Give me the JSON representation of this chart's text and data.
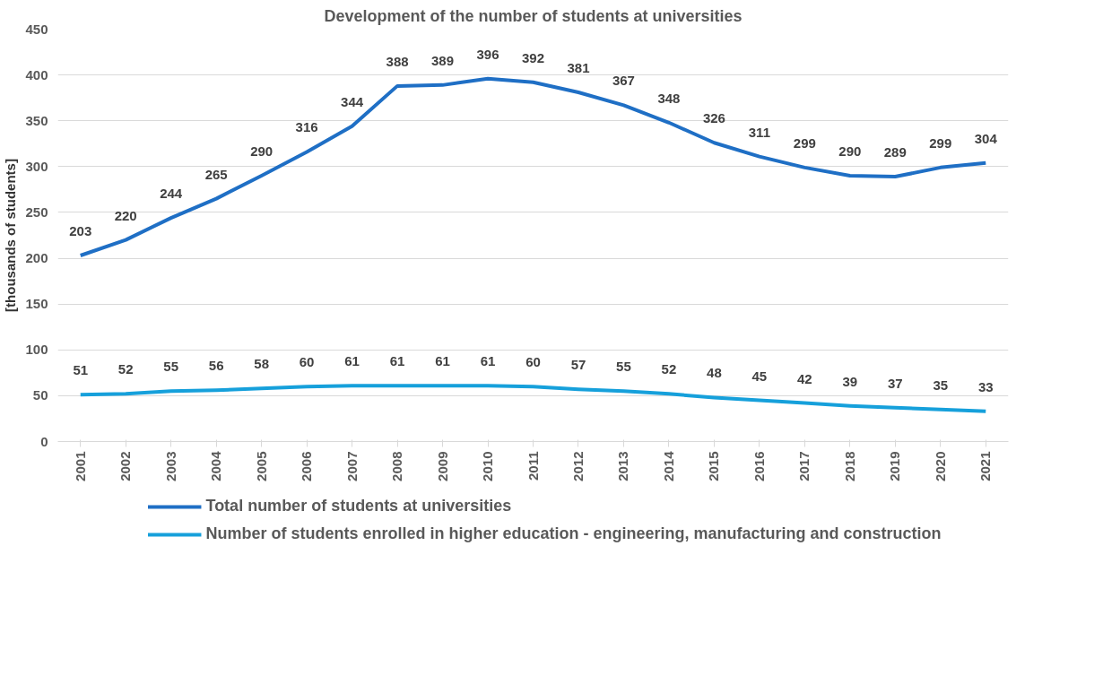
{
  "chart_data": {
    "type": "line",
    "title": "Development of the number of students at universities",
    "ylabel": "[thousands of students]",
    "categories": [
      "2001",
      "2002",
      "2003",
      "2004",
      "2005",
      "2006",
      "2007",
      "2008",
      "2009",
      "2010",
      "2011",
      "2012",
      "2013",
      "2014",
      "2015",
      "2016",
      "2017",
      "2018",
      "2019",
      "2020",
      "2021"
    ],
    "series": [
      {
        "name": "Total number of students at universities",
        "color": "#1f6fc5",
        "values": [
          203,
          220,
          244,
          265,
          290,
          316,
          344,
          388,
          389,
          396,
          392,
          381,
          367,
          348,
          326,
          311,
          299,
          290,
          289,
          299,
          304
        ]
      },
      {
        "name": "Number of students enrolled in higher education - engineering, manufacturing and construction",
        "color": "#16a0db",
        "values": [
          51,
          52,
          55,
          56,
          58,
          60,
          61,
          61,
          61,
          61,
          60,
          57,
          55,
          52,
          48,
          45,
          42,
          39,
          37,
          35,
          33
        ]
      }
    ],
    "ylim": [
      0,
      450
    ],
    "yticks": [
      0,
      50,
      100,
      150,
      200,
      250,
      300,
      350,
      400,
      450
    ],
    "grid": "y",
    "legend": "bottom",
    "data_labels": true,
    "marker": "none",
    "line_style": "solid"
  }
}
